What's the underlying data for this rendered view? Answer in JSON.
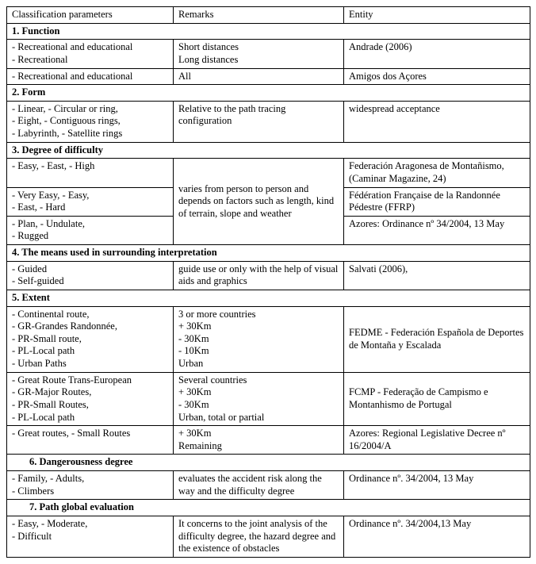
{
  "header": {
    "col1": "Classification parameters",
    "col2": "Remarks",
    "col3": "Entity"
  },
  "s1": {
    "title": "1. Function",
    "r1": {
      "p": "- Recreational and educational\n- Recreational",
      "r": "Short distances\nLong distances",
      "e": "Andrade (2006)"
    },
    "r2": {
      "p": "- Recreational and educational",
      "r": "All",
      "e": "Amigos dos Açores"
    }
  },
  "s2": {
    "title": "2. Form",
    "r1": {
      "p": "- Linear,   - Circular or ring,\n- Eight,    - Contiguous rings,\n- Labyrinth,  - Satellite rings",
      "r": "Relative to the path tracing configuration",
      "e": "widespread acceptance"
    }
  },
  "s3": {
    "title": "3. Degree of difficulty",
    "r1p": "- Easy,   - East,   - High",
    "r2p": "- Very Easy,   - Easy,\n- East,        - Hard",
    "r3p": "- Plan,     - Undulate,\n- Rugged",
    "remarks": "varies from person to person and depends on factors such as length, kind of terrain, slope and weather",
    "e1": "Federación Aragonesa de Montañismo, (Caminar Magazine, 24)",
    "e2": "Fédération Française de la Randonnée Pédestre (FFRP)",
    "e3": "Azores: Ordinance nº 34/2004, 13 May"
  },
  "s4": {
    "title": "4. The means used in surrounding interpretation",
    "r1": {
      "p": "- Guided\n- Self-guided",
      "r": "guide use or only with the help of visual aids and graphics",
      "e": "Salvati (2006),"
    }
  },
  "s5": {
    "title": "5. Extent",
    "r1": {
      "p": "- Continental route,\n- GR-Grandes Randonnée,\n- PR-Small route,\n- PL-Local path\n- Urban Paths",
      "r": "3 or more countries\n+ 30Km\n- 30Km\n- 10Km\nUrban",
      "e": "FEDME - Federación Española de Deportes de Montaña y Escalada"
    },
    "r2": {
      "p": "- Great Route Trans-European\n- GR-Major Routes,\n- PR-Small Routes,\n- PL-Local path",
      "r": "Several countries\n+ 30Km\n- 30Km\nUrban, total or partial",
      "e": "FCMP - Federação de Campismo e Montanhismo de Portugal"
    },
    "r3": {
      "p": "- Great routes,  - Small Routes",
      "r": "+ 30Km\nRemaining",
      "e": "Azores: Regional Legislative Decree nº 16/2004/A"
    }
  },
  "s6": {
    "title": "6. Dangerousness degree",
    "r1": {
      "p": "- Family,       - Adults,\n- Climbers",
      "r": "evaluates the accident risk along the way and the difficulty degree",
      "e": "Ordinance nº. 34/2004, 13 May"
    }
  },
  "s7": {
    "title": "7. Path global evaluation",
    "r1": {
      "p": "- Easy,        - Moderate,\n- Difficult",
      "r": "It concerns to the joint analysis of the difficulty degree, the hazard degree and the existence of obstacles",
      "e": "Ordinance nº. 34/2004,13 May"
    }
  }
}
